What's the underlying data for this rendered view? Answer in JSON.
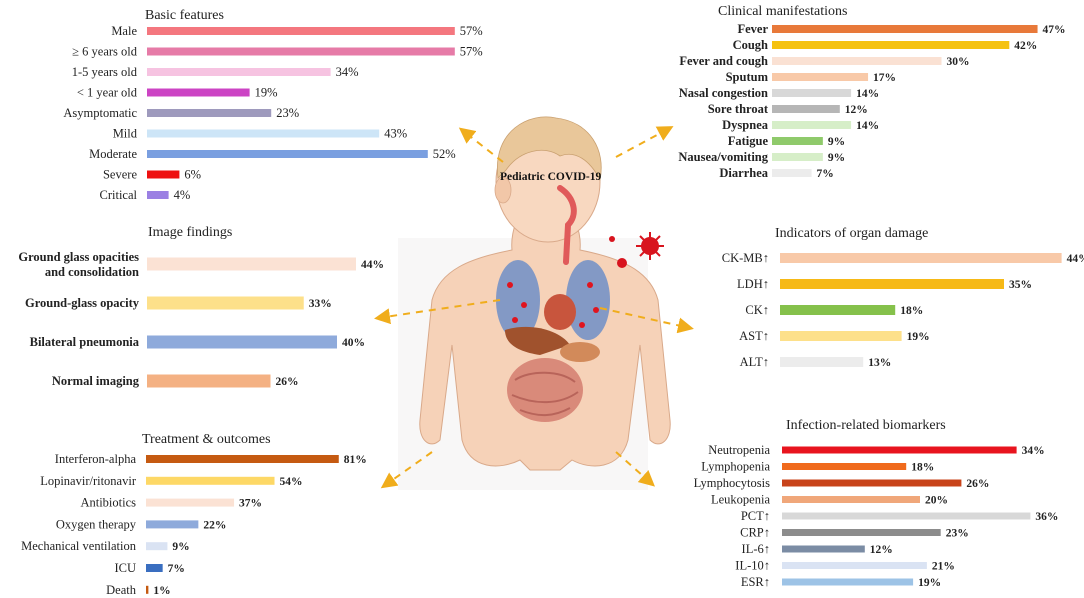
{
  "center_label": "Pediatric COVID-19",
  "chart_data": [
    {
      "id": "basic",
      "type": "bar",
      "title": "Basic  features",
      "categories": [
        "Male",
        "≥ 6 years old",
        "1-5 years old",
        "< 1 year old",
        "Asymptomatic",
        "Mild",
        "Moderate",
        "Severe",
        "Critical"
      ],
      "values": [
        57,
        57,
        34,
        19,
        23,
        43,
        52,
        6,
        4
      ],
      "value_labels": [
        "57%",
        "57%",
        "34%",
        "19%",
        "23%",
        "43%",
        "52%",
        "6%",
        "4%"
      ],
      "colors": [
        "#f4777f",
        "#e67ba7",
        "#f6c3e1",
        "#cc44c4",
        "#9e9abd",
        "#cde5f7",
        "#7a9fe0",
        "#ee1111",
        "#9b80e3"
      ]
    },
    {
      "id": "clinical",
      "type": "bar",
      "title": "Clinical manifestations",
      "categories": [
        "Fever",
        "Cough",
        "Fever and cough",
        "Sputum",
        "Nasal congestion",
        "Sore throat",
        "Dyspnea",
        "Fatigue",
        "Nausea/vomiting",
        "Diarrhea"
      ],
      "values": [
        47,
        42,
        30,
        17,
        14,
        12,
        14,
        9,
        9,
        7
      ],
      "value_labels": [
        "47%",
        "42%",
        "30%",
        "17%",
        "14%",
        "12%",
        "14%",
        "9%",
        "9%",
        "7%"
      ],
      "colors": [
        "#e8793a",
        "#f5c211",
        "#fae1d3",
        "#f8c9a8",
        "#d8d8d8",
        "#b6b6b6",
        "#d6eec8",
        "#8fca6b",
        "#d6eec8",
        "#ececec"
      ]
    },
    {
      "id": "image",
      "type": "bar",
      "title": "Image findings",
      "categories": [
        "Ground glass opacities and consolidation",
        "Ground-glass opacity",
        "Bilateral pneumonia",
        "Normal imaging"
      ],
      "values": [
        44,
        33,
        40,
        26
      ],
      "value_labels": [
        "44%",
        "33%",
        "40%",
        "26%"
      ],
      "colors": [
        "#fbe2d4",
        "#fde08a",
        "#8eaadb",
        "#f4b183"
      ]
    },
    {
      "id": "organ",
      "type": "bar",
      "title": "Indicators of organ damage",
      "categories": [
        "CK-MB↑",
        "LDH↑",
        "CK↑",
        "AST↑",
        "ALT↑"
      ],
      "values": [
        44,
        35,
        18,
        19,
        13
      ],
      "value_labels": [
        "44%",
        "35%",
        "18%",
        "19%",
        "13%"
      ],
      "colors": [
        "#f8c9a8",
        "#f6b916",
        "#85c14b",
        "#fde08a",
        "#ececec"
      ]
    },
    {
      "id": "treatment",
      "type": "bar",
      "title": "Treatment & outcomes",
      "categories": [
        "Interferon-alpha",
        "Lopinavir/ritonavir",
        "Antibiotics",
        "Oxygen therapy",
        "Mechanical ventilation",
        "ICU",
        "Death"
      ],
      "values": [
        81,
        54,
        37,
        22,
        9,
        7,
        1
      ],
      "value_labels": [
        "81%",
        "54%",
        "37%",
        "22%",
        "9%",
        "7%",
        "1%"
      ],
      "colors": [
        "#c55a11",
        "#fdd866",
        "#fbe2d4",
        "#8eaadb",
        "#dae3f3",
        "#3a6ec0",
        "#c55a11"
      ]
    },
    {
      "id": "infection",
      "type": "bar",
      "title": "Infection-related biomarkers",
      "categories": [
        "Neutropenia",
        "Lymphopenia",
        "Lymphocytosis",
        "Leukopenia",
        "PCT↑",
        "CRP↑",
        "IL-6↑",
        "IL-10↑",
        "ESR↑"
      ],
      "values": [
        34,
        18,
        26,
        20,
        36,
        23,
        12,
        21,
        19
      ],
      "value_labels": [
        "34%",
        "18%",
        "26%",
        "20%",
        "36%",
        "23%",
        "12%",
        "21%",
        "19%"
      ],
      "colors": [
        "#e8141e",
        "#f06a1c",
        "#c8431a",
        "#f0a77a",
        "#d8d8d8",
        "#8c8c8c",
        "#7b8ca4",
        "#dae3f3",
        "#9dc3e6"
      ]
    }
  ]
}
